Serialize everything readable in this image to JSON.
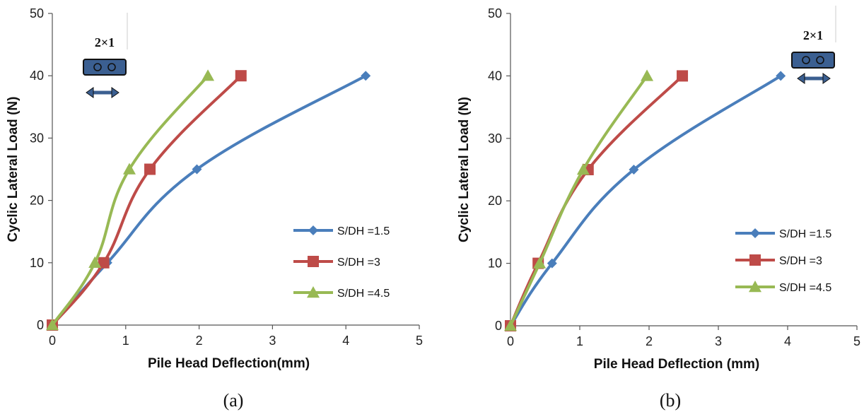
{
  "chart_data": [
    {
      "type": "line",
      "caption": "(a)",
      "xlabel": "Pile Head Deflection(mm)",
      "ylabel": "Cyclic Lateral Load (N)",
      "xlim": [
        0,
        5
      ],
      "ylim": [
        0,
        50
      ],
      "xticks": [
        "0",
        "1",
        "2",
        "3",
        "4",
        "5"
      ],
      "yticks": [
        "0",
        "10",
        "20",
        "30",
        "40",
        "50"
      ],
      "grid": false,
      "legend_position": "lower-right",
      "inset_label": "2×1",
      "series": [
        {
          "name": "S/DH =1.5",
          "color": "#4a7ebb",
          "marker": "diamond",
          "x": [
            0,
            0.75,
            1.97,
            4.27
          ],
          "y": [
            0,
            10,
            25,
            40
          ]
        },
        {
          "name": "S/DH =3",
          "color": "#be4b48",
          "marker": "square",
          "x": [
            0,
            0.7,
            1.33,
            2.57
          ],
          "y": [
            0,
            10,
            25,
            40
          ]
        },
        {
          "name": "S/DH =4.5",
          "color": "#98b954",
          "marker": "triangle",
          "x": [
            0,
            0.58,
            1.05,
            2.12
          ],
          "y": [
            0,
            10,
            25,
            40
          ]
        }
      ]
    },
    {
      "type": "line",
      "caption": "(b)",
      "xlabel": "Pile Head Deflection (mm)",
      "ylabel": "Cyclic Lateral Load (N)",
      "xlim": [
        0,
        5
      ],
      "ylim": [
        0,
        50
      ],
      "xticks": [
        "0",
        "1",
        "2",
        "3",
        "4",
        "5"
      ],
      "yticks": [
        "0",
        "10",
        "20",
        "30",
        "40",
        "50"
      ],
      "grid": false,
      "legend_position": "lower-right",
      "inset_label": "2×1",
      "series": [
        {
          "name": "S/DH =1.5",
          "color": "#4a7ebb",
          "marker": "diamond",
          "x": [
            0,
            0.6,
            1.78,
            3.9
          ],
          "y": [
            0,
            10,
            25,
            40
          ]
        },
        {
          "name": "S/DH =3",
          "color": "#be4b48",
          "marker": "square",
          "x": [
            0,
            0.4,
            1.12,
            2.48
          ],
          "y": [
            0,
            10,
            25,
            40
          ]
        },
        {
          "name": "S/DH =4.5",
          "color": "#98b954",
          "marker": "triangle",
          "x": [
            0,
            0.42,
            1.05,
            1.97
          ],
          "y": [
            0,
            10,
            25,
            40
          ]
        }
      ]
    }
  ]
}
